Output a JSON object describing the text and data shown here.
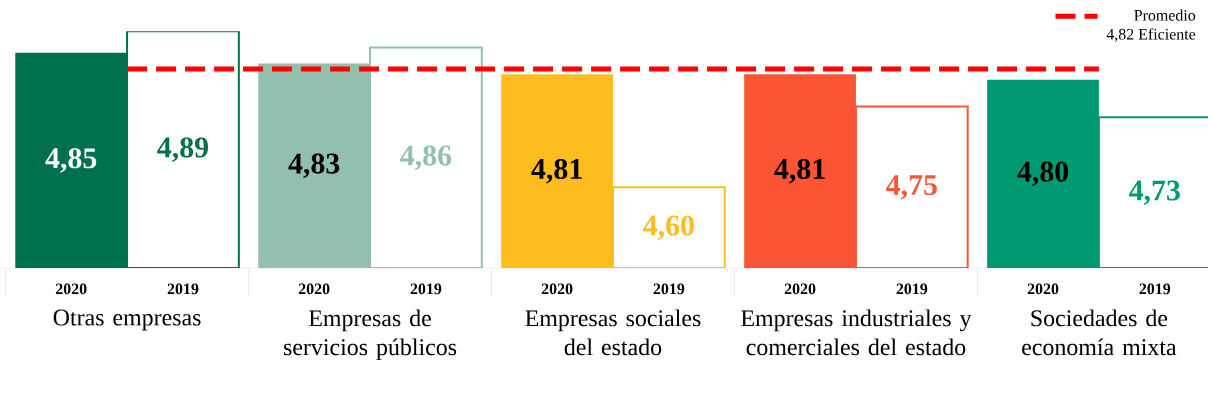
{
  "chart_data": {
    "type": "bar",
    "categories": [
      "Otras empresas",
      "Empresas de servicios públicos",
      "Empresas sociales del estado",
      "Empresas industriales y comerciales del estado",
      "Sociedades de economía mixta"
    ],
    "series": [
      {
        "name": "2020",
        "colors": [
          "#00704f",
          "#93bfae",
          "#fdbd1f",
          "#fc5535",
          "#009a72"
        ],
        "values": [
          4.85,
          4.83,
          4.81,
          4.81,
          4.8
        ],
        "value_labels": [
          "4,85",
          "4,83",
          "4,81",
          "4,81",
          "4,80"
        ]
      },
      {
        "name": "2019",
        "colors": [
          "#00704f",
          "#93bfae",
          "#fdbd1f",
          "#fc5535",
          "#009a72"
        ],
        "values": [
          4.89,
          4.86,
          4.6,
          4.75,
          4.73
        ],
        "value_labels": [
          "4,89",
          "4,86",
          "4,60",
          "4,75",
          "4,73"
        ]
      }
    ],
    "ylim": [
      4.45,
      4.89
    ],
    "ref_lines": [
      {
        "axis": "y",
        "value": 4.82,
        "label": "Promedio 4,82 Eficiente",
        "color": "#ff0000",
        "line_style": "dashed"
      }
    ],
    "legend": "top right"
  }
}
